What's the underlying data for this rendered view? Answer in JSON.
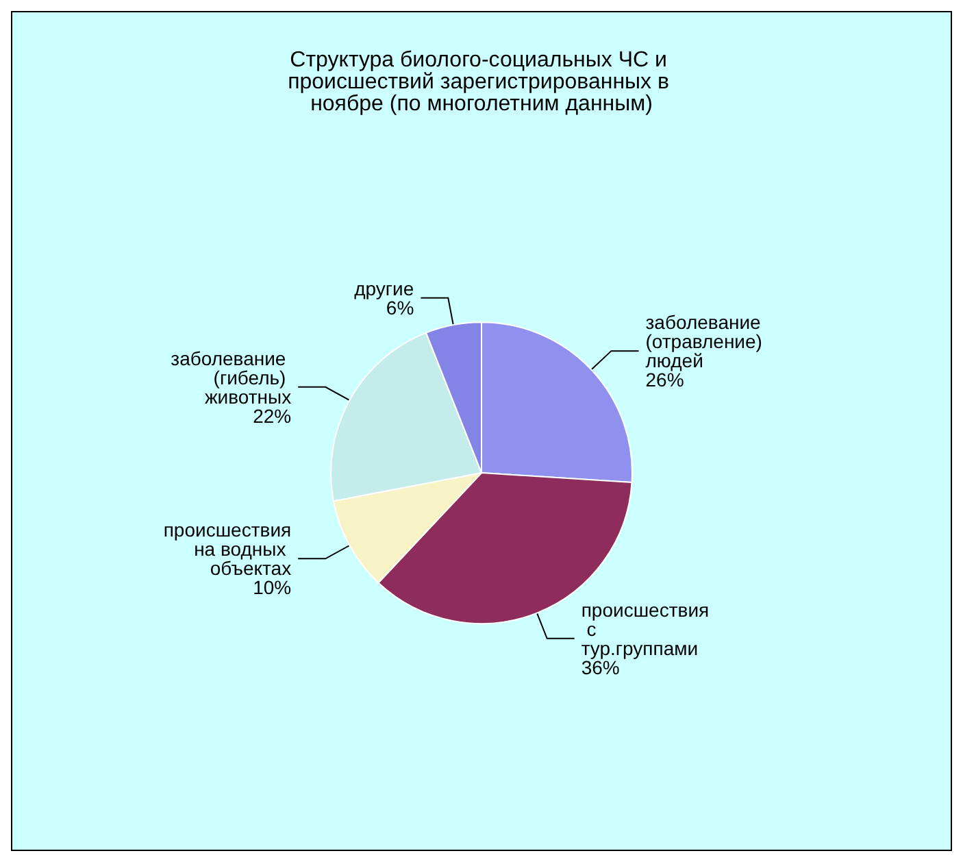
{
  "chart_data": {
    "type": "pie",
    "title": "Структура биолого-социальных ЧС и происшествий зарегистрированных в ноябре (по многолетним данным)",
    "categories": [
      "заболевание (отравление) людей",
      "происшествия с тур.группами",
      "происшествия на водных объектах",
      "заболевание (гибель) животных",
      "другие"
    ],
    "values": [
      26,
      36,
      10,
      22,
      6
    ],
    "value_labels": [
      "26%",
      "36%",
      "10%",
      "22%",
      "6%"
    ],
    "colors": [
      "#9090ee",
      "#8e2c5c",
      "#f7f3c4",
      "#c4ecea",
      "#8484e6"
    ],
    "legend": false
  }
}
